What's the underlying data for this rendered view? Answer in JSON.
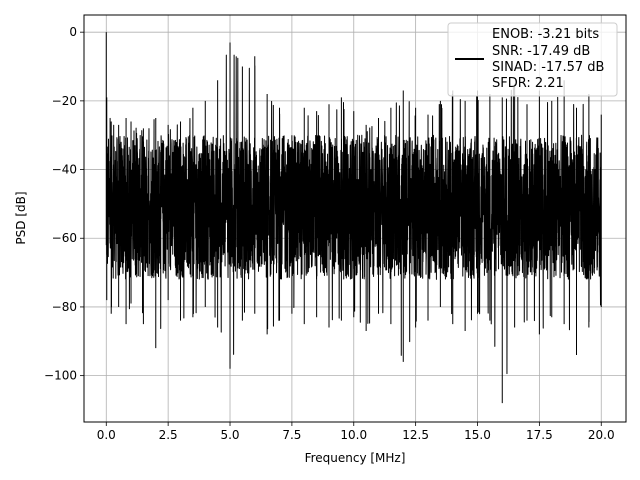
{
  "chart_data": {
    "type": "line",
    "title": "",
    "xlabel": "Frequency [MHz]",
    "ylabel": "PSD [dB]",
    "xlim": [
      -0.9,
      21.0
    ],
    "ylim": [
      -113.5,
      5.0
    ],
    "xticks": [
      0.0,
      2.5,
      5.0,
      7.5,
      10.0,
      12.5,
      15.0,
      17.5,
      20.0
    ],
    "xtick_labels": [
      "0.0",
      "2.5",
      "5.0",
      "7.5",
      "10.0",
      "12.5",
      "15.0",
      "17.5",
      "20.0"
    ],
    "yticks": [
      0,
      -20,
      -40,
      -60,
      -80,
      -100
    ],
    "ytick_labels": [
      "0",
      "−20",
      "−40",
      "−60",
      "−80",
      "−100"
    ],
    "grid": true,
    "legend": {
      "placement": "top-right",
      "entries": [
        "ENOB: -3.21 bits",
        "SNR: -17.49 dB",
        "SINAD: -17.57 dB",
        "SFDR: 2.21"
      ]
    },
    "series": [
      {
        "color": "#000000",
        "x_range": [
          0.0,
          20.0
        ],
        "typical_range_db": [
          -72,
          -30
        ],
        "x": [
          0.0,
          0.02,
          0.2,
          0.5,
          0.8,
          1.0,
          1.5,
          2.0,
          2.5,
          3.0,
          3.5,
          4.0,
          4.5,
          5.0,
          5.5,
          6.0,
          6.5,
          7.0,
          7.5,
          8.0,
          8.5,
          9.0,
          9.5,
          10.0,
          10.5,
          11.0,
          11.5,
          12.0,
          12.5,
          13.0,
          13.5,
          14.0,
          14.5,
          15.0,
          15.5,
          16.0,
          16.5,
          17.0,
          17.5,
          18.0,
          18.5,
          19.0,
          19.5,
          20.0
        ],
        "peak_db": [
          0,
          -19,
          -26,
          -27,
          -25,
          -26,
          -28,
          -25,
          -27,
          -26,
          -22,
          -20,
          -14,
          -3,
          -10,
          -7,
          -18,
          -22,
          -30,
          -22,
          -23,
          -21,
          -19,
          -23,
          -27,
          -25,
          -22,
          -17,
          -22,
          -24,
          -20,
          -17,
          -20,
          -17,
          -18,
          -19,
          -15,
          -21,
          -17,
          -20,
          -14,
          -22,
          -18,
          -24
        ],
        "trough_db": [
          -62,
          -78,
          -82,
          -80,
          -85,
          -79,
          -85,
          -92,
          -78,
          -84,
          -83,
          -80,
          -86,
          -98,
          -84,
          -82,
          -88,
          -84,
          -82,
          -85,
          -83,
          -86,
          -84,
          -83,
          -87,
          -82,
          -85,
          -96,
          -86,
          -84,
          -80,
          -85,
          -87,
          -82,
          -84,
          -108,
          -86,
          -84,
          -88,
          -83,
          -85,
          -94,
          -86,
          -80
        ]
      }
    ]
  }
}
